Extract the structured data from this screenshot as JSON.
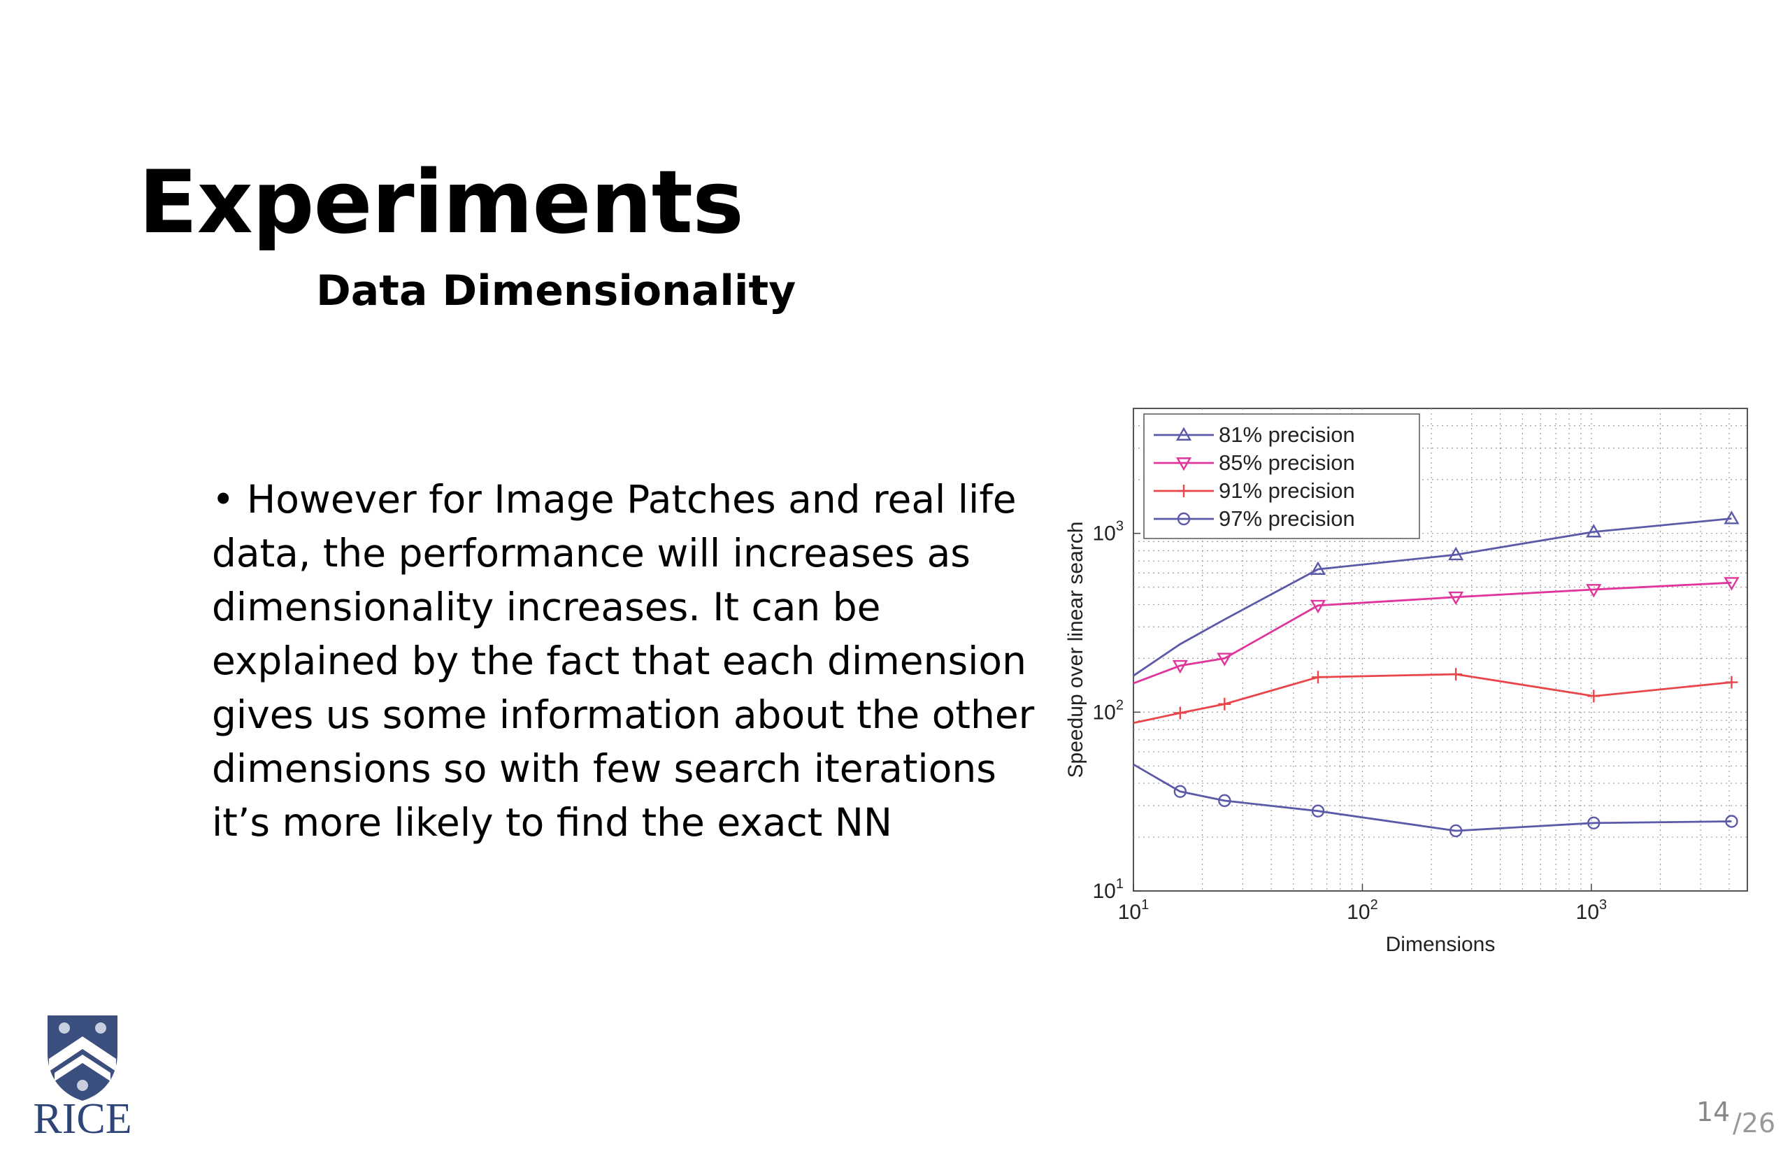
{
  "slide": {
    "title": "Experiments",
    "subtitle": "Data Dimensionality",
    "bullet": "• However for Image Patches and real life data, the performance will increases as dimensionality increases. It can be explained by the fact that each dimension gives us some information about the other dimensions so with few search iterations it’s more likely to find the exact NN",
    "logo_text": "RICE",
    "page_number": "14",
    "page_total": "/26"
  },
  "chart_data": {
    "type": "line",
    "title": "",
    "xlabel": "Dimensions",
    "ylabel": "Speedup over linear search",
    "xscale": "log",
    "yscale": "log",
    "xlim": [
      10,
      4800
    ],
    "ylim": [
      10,
      5000
    ],
    "grid": true,
    "legend_position": "top-left",
    "x_ticks": [
      {
        "base": "10",
        "exp": "1",
        "value": 10
      },
      {
        "base": "10",
        "exp": "2",
        "value": 100
      },
      {
        "base": "10",
        "exp": "3",
        "value": 1000
      }
    ],
    "y_ticks": [
      {
        "base": "10",
        "exp": "1",
        "value": 10
      },
      {
        "base": "10",
        "exp": "2",
        "value": 100
      },
      {
        "base": "10",
        "exp": "3",
        "value": 1000
      }
    ],
    "series": [
      {
        "name": "81% precision",
        "color": "#5a5aa8",
        "marker": "triangle-up",
        "x": [
          10,
          16,
          25,
          64,
          256,
          1024,
          4096
        ],
        "y": [
          160,
          240,
          330,
          630,
          760,
          1020,
          1210
        ],
        "marker_from": 3
      },
      {
        "name": "85% precision",
        "color": "#e0359a",
        "marker": "triangle-down",
        "x": [
          10,
          16,
          25,
          64,
          256,
          1024,
          4096
        ],
        "y": [
          145,
          182,
          200,
          395,
          440,
          485,
          530
        ],
        "marker_from": 1
      },
      {
        "name": "91% precision",
        "color": "#e8464a",
        "marker": "plus",
        "x": [
          10,
          16,
          25,
          64,
          256,
          1024,
          4096
        ],
        "y": [
          87,
          99,
          111,
          157,
          163,
          123,
          147
        ],
        "marker_from": 1
      },
      {
        "name": "97% precision",
        "color": "#5a5aa8",
        "marker": "circle",
        "x": [
          10,
          16,
          25,
          64,
          256,
          1024,
          4096
        ],
        "y": [
          51,
          36,
          32,
          28,
          21.7,
          24,
          24.5
        ],
        "marker_from": 1
      }
    ]
  }
}
